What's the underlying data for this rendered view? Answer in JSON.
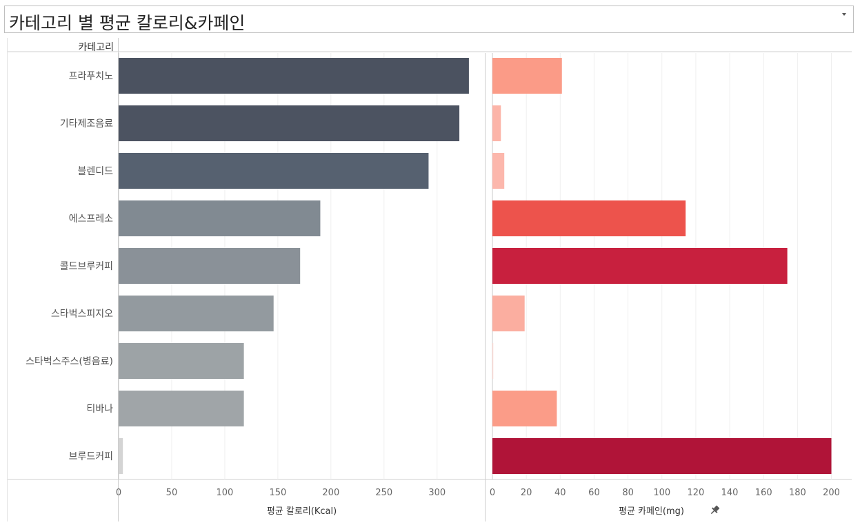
{
  "title": "카테고리 별 평균 칼로리&카페인",
  "category_header": "카테고리",
  "chart_data": {
    "type": "bar",
    "orientation": "horizontal",
    "title": "카테고리 별 평균 칼로리&카페인",
    "categories": [
      "프라푸치노",
      "기타제조음료",
      "블렌디드",
      "에스프레소",
      "콜드브루커피",
      "스타벅스피지오",
      "스타벅스주스(병음료)",
      "티바나",
      "브루드커피"
    ],
    "series": [
      {
        "name": "평균 칼로리(Kcal)",
        "values": [
          330,
          321,
          292,
          190,
          171,
          146,
          118,
          118,
          4
        ],
        "colors": [
          "#4b5260",
          "#4c5361",
          "#566170",
          "#818a92",
          "#8a9198",
          "#939a9f",
          "#9da3a6",
          "#a0a5a8",
          "#d4d4d4"
        ],
        "xlim": [
          0,
          345
        ],
        "ticks": [
          0,
          50,
          100,
          150,
          200,
          250,
          300
        ]
      },
      {
        "name": "평균 카페인(mg)",
        "values": [
          41,
          5,
          7,
          114,
          174,
          19,
          0.5,
          38,
          200
        ],
        "colors": [
          "#fb9b87",
          "#fcb4a8",
          "#fcb7ac",
          "#ed534c",
          "#c8203e",
          "#fbaea0",
          "#fdd9d2",
          "#fb9c88",
          "#b01438"
        ],
        "xlim": [
          0,
          212
        ],
        "ticks": [
          0,
          20,
          40,
          60,
          80,
          100,
          120,
          140,
          160,
          180,
          200
        ]
      }
    ],
    "xlabels": [
      "평균 칼로리(Kcal)",
      "평균 카페인(mg)"
    ],
    "grid": true
  }
}
